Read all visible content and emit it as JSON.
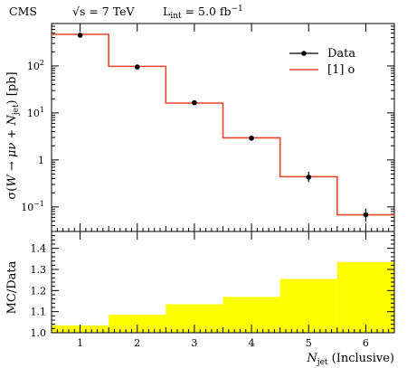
{
  "header": {
    "experiment": "CMS",
    "energy": "√s = 7 TeV",
    "lumi": "L",
    "lumi_sub": "int",
    "lumi_value": " = 5.0 fb",
    "lumi_exp": "−1"
  },
  "chart_data": [
    {
      "type": "line",
      "panel": "main",
      "ylabel": "σ(W → μν + N_jet) [pb]",
      "yscale": "log",
      "ylim": [
        0.03,
        800
      ],
      "xlim": [
        0.5,
        6.5
      ],
      "y_ticks": [
        {
          "v": 0.1,
          "base": "10",
          "exp": "−1"
        },
        {
          "v": 1,
          "base": "1",
          "exp": ""
        },
        {
          "v": 10,
          "base": "10",
          "exp": "1"
        },
        {
          "v": 100,
          "base": "10",
          "exp": "2"
        }
      ],
      "legend": {
        "placement": "top-right",
        "entries": [
          "Data",
          "[1] o"
        ]
      },
      "series": [
        {
          "name": "Data",
          "style": "points-with-errors",
          "color": "#000000",
          "x": [
            1,
            2,
            3,
            4,
            5,
            6
          ],
          "y": [
            450,
            95,
            16.5,
            2.9,
            0.43,
            0.068
          ],
          "err_low": [
            460,
            97,
            17,
            3.1,
            0.34,
            0.048
          ],
          "err_high": [
            470,
            99,
            17.5,
            3.25,
            0.56,
            0.092
          ]
        },
        {
          "name": "[1] o",
          "style": "step",
          "color": "#e8442e",
          "bins": [
            [
              0.5,
              1.5
            ],
            [
              1.5,
              2.5
            ],
            [
              2.5,
              3.5
            ],
            [
              3.5,
              4.5
            ],
            [
              4.5,
              5.5
            ],
            [
              5.5,
              6.5
            ]
          ],
          "values": [
            470,
            98,
            16.2,
            2.95,
            0.44,
            0.068
          ]
        }
      ]
    },
    {
      "type": "bar",
      "panel": "ratio",
      "ylabel": "MC/Data",
      "ylim": [
        1.0,
        1.48
      ],
      "y_ticks": [
        "1.0",
        "1.1",
        "1.2",
        "1.3",
        "1.4"
      ],
      "xlabel": "N_jet (Inclusive)",
      "x_ticks": [
        "1",
        "2",
        "3",
        "4",
        "5",
        "6"
      ],
      "xlim": [
        0.5,
        6.5
      ],
      "fill_color": "#ffff00",
      "bins": [
        [
          0.5,
          1.5
        ],
        [
          1.5,
          2.5
        ],
        [
          2.5,
          3.5
        ],
        [
          3.5,
          4.5
        ],
        [
          4.5,
          5.5
        ],
        [
          5.5,
          6.5
        ]
      ],
      "values": [
        1.035,
        1.085,
        1.135,
        1.17,
        1.255,
        1.335
      ]
    }
  ]
}
